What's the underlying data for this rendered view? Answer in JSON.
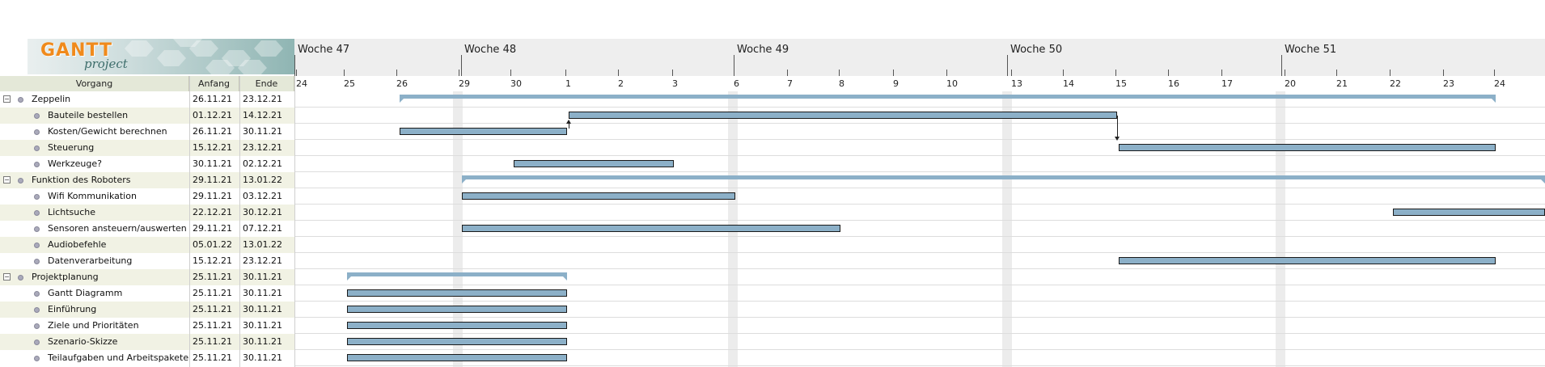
{
  "app": {
    "logo_text": "GANTT",
    "logo_subtext": "project"
  },
  "columns": {
    "task": "Vorgang",
    "start": "Anfang",
    "end": "Ende"
  },
  "weeks": [
    "Woche 47",
    "Woche 48",
    "Woche 49",
    "Woche 50",
    "Woche 51"
  ],
  "days": [
    "24",
    "25",
    "26",
    "29",
    "30",
    "1",
    "2",
    "3",
    "6",
    "7",
    "8",
    "9",
    "10",
    "13",
    "14",
    "15",
    "16",
    "17",
    "20",
    "21",
    "22",
    "23",
    "24"
  ],
  "tasks": [
    {
      "name": "Zeppelin",
      "start": "26.11.21",
      "end": "23.12.21",
      "level": 0
    },
    {
      "name": "Bauteile bestellen",
      "start": "01.12.21",
      "end": "14.12.21",
      "level": 1
    },
    {
      "name": "Kosten/Gewicht berechnen",
      "start": "26.11.21",
      "end": "30.11.21",
      "level": 1
    },
    {
      "name": "Steuerung",
      "start": "15.12.21",
      "end": "23.12.21",
      "level": 1
    },
    {
      "name": "Werkzeuge?",
      "start": "30.11.21",
      "end": "02.12.21",
      "level": 1
    },
    {
      "name": "Funktion des Roboters",
      "start": "29.11.21",
      "end": "13.01.22",
      "level": 0
    },
    {
      "name": "Wifi Kommunikation",
      "start": "29.11.21",
      "end": "03.12.21",
      "level": 1
    },
    {
      "name": "Lichtsuche",
      "start": "22.12.21",
      "end": "30.12.21",
      "level": 1
    },
    {
      "name": "Sensoren ansteuern/auswerten",
      "start": "29.11.21",
      "end": "07.12.21",
      "level": 1
    },
    {
      "name": "Audiobefehle",
      "start": "05.01.22",
      "end": "13.01.22",
      "level": 1
    },
    {
      "name": "Datenverarbeitung",
      "start": "15.12.21",
      "end": "23.12.21",
      "level": 1
    },
    {
      "name": "Projektplanung",
      "start": "25.11.21",
      "end": "30.11.21",
      "level": 0
    },
    {
      "name": "Gantt Diagramm",
      "start": "25.11.21",
      "end": "30.11.21",
      "level": 1
    },
    {
      "name": "Einführung",
      "start": "25.11.21",
      "end": "30.11.21",
      "level": 1
    },
    {
      "name": "Ziele und Prioritäten",
      "start": "25.11.21",
      "end": "30.11.21",
      "level": 1
    },
    {
      "name": "Szenario-Skizze",
      "start": "25.11.21",
      "end": "30.11.21",
      "level": 1
    },
    {
      "name": "Teilaufgaben und Arbeitspakete",
      "start": "25.11.21",
      "end": "30.11.21",
      "level": 1
    }
  ],
  "icons": {
    "collapse": "collapse-minus-icon",
    "task_dot": "task-dot-icon"
  },
  "colors": {
    "bar": "#8cb0c8",
    "row_alt": "#f1f2e4",
    "header_bg": "#eeeeee"
  }
}
